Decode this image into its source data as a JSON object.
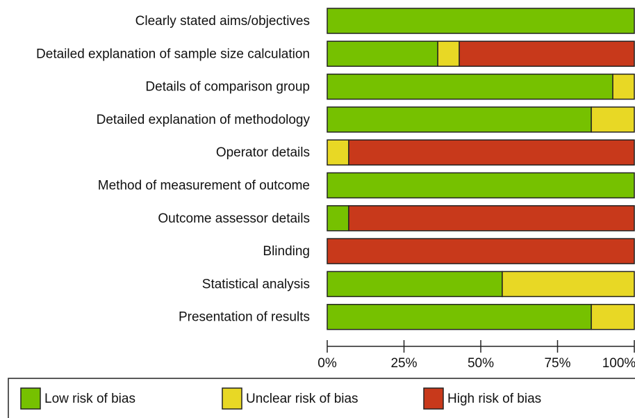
{
  "chart_data": {
    "type": "bar",
    "orientation": "horizontal",
    "stacked": true,
    "categories": [
      "Clearly stated aims/objectives",
      "Detailed explanation of sample size calculation",
      "Details of comparison group",
      "Detailed explanation of methodology",
      "Operator details",
      "Method of measurement of outcome",
      "Outcome assessor details",
      "Blinding",
      "Statistical analysis",
      "Presentation of results"
    ],
    "series": [
      {
        "name": "Low risk of bias",
        "color": "#76c100",
        "values": [
          100,
          36,
          93,
          86,
          0,
          100,
          7,
          0,
          57,
          86
        ]
      },
      {
        "name": "Unclear risk of bias",
        "color": "#e8d825",
        "values": [
          0,
          7,
          7,
          14,
          7,
          0,
          0,
          0,
          43,
          14
        ]
      },
      {
        "name": "High risk of bias",
        "color": "#c8391b",
        "values": [
          0,
          57,
          0,
          0,
          93,
          0,
          93,
          100,
          0,
          0
        ]
      }
    ],
    "xlim": [
      0,
      100
    ],
    "xticks": [
      {
        "value": 0,
        "label": "0%"
      },
      {
        "value": 25,
        "label": "25%"
      },
      {
        "value": 50,
        "label": "50%"
      },
      {
        "value": 75,
        "label": "75%"
      },
      {
        "value": 100,
        "label": "100%"
      }
    ],
    "legend": "bottom"
  }
}
